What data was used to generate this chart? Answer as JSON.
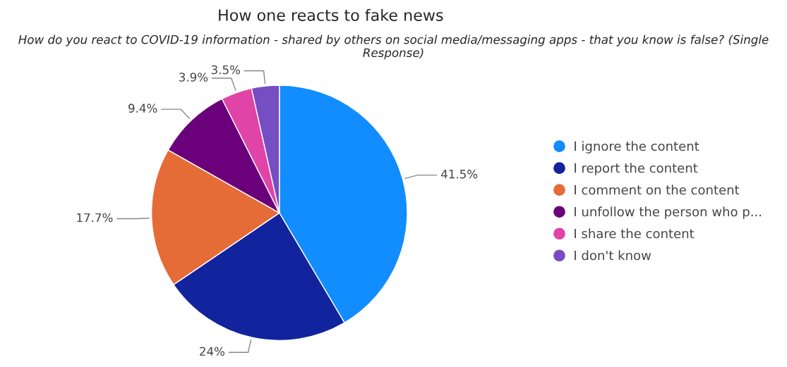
{
  "chart_data": {
    "type": "pie",
    "title": "How one reacts to fake news",
    "subtitle": "How do you react to COVID-19 information - shared by others on social media/messaging apps - that you know is false? (Single Response)",
    "categories": [
      "I ignore the content",
      "I report the content",
      "I comment on the content",
      "I unfollow the person who p...",
      "I share the content",
      "I don't know"
    ],
    "values": [
      41.5,
      24,
      17.7,
      9.4,
      3.9,
      3.5
    ],
    "value_labels": [
      "41.5%",
      "24%",
      "17.7%",
      "9.4%",
      "3.9%",
      "3.5%"
    ],
    "colors": [
      "#118dff",
      "#12239e",
      "#e66c37",
      "#6b007b",
      "#e044a7",
      "#744ec2"
    ],
    "legend": "right"
  }
}
